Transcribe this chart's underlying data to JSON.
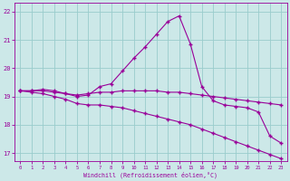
{
  "x": [
    0,
    1,
    2,
    3,
    4,
    5,
    6,
    7,
    8,
    9,
    10,
    11,
    12,
    13,
    14,
    15,
    16,
    17,
    18,
    19,
    20,
    21,
    22,
    23
  ],
  "line1": [
    19.2,
    19.2,
    19.25,
    19.2,
    19.1,
    19.0,
    19.05,
    19.35,
    19.45,
    19.9,
    20.35,
    20.75,
    21.2,
    21.65,
    21.85,
    20.85,
    19.35,
    18.85,
    18.7,
    18.65,
    18.6,
    18.45,
    17.6,
    17.35
  ],
  "line2": [
    19.2,
    19.2,
    19.2,
    19.15,
    19.1,
    19.05,
    19.1,
    19.15,
    19.15,
    19.2,
    19.2,
    19.2,
    19.2,
    19.15,
    19.15,
    19.1,
    19.05,
    19.0,
    18.95,
    18.9,
    18.85,
    18.8,
    18.75,
    18.7
  ],
  "line3": [
    19.2,
    19.15,
    19.1,
    19.0,
    18.9,
    18.75,
    18.7,
    18.7,
    18.65,
    18.6,
    18.5,
    18.4,
    18.3,
    18.2,
    18.1,
    18.0,
    17.85,
    17.7,
    17.55,
    17.4,
    17.25,
    17.1,
    16.95,
    16.8
  ],
  "line_color": "#990099",
  "bg_color": "#cce8e8",
  "grid_color": "#99cccc",
  "xlabel": "Windchill (Refroidissement éolien,°C)",
  "ylim": [
    16.7,
    22.3
  ],
  "xlim": [
    -0.5,
    23.5
  ],
  "yticks": [
    17,
    18,
    19,
    20,
    21,
    22
  ],
  "xticks": [
    0,
    1,
    2,
    3,
    4,
    5,
    6,
    7,
    8,
    9,
    10,
    11,
    12,
    13,
    14,
    15,
    16,
    17,
    18,
    19,
    20,
    21,
    22,
    23
  ]
}
